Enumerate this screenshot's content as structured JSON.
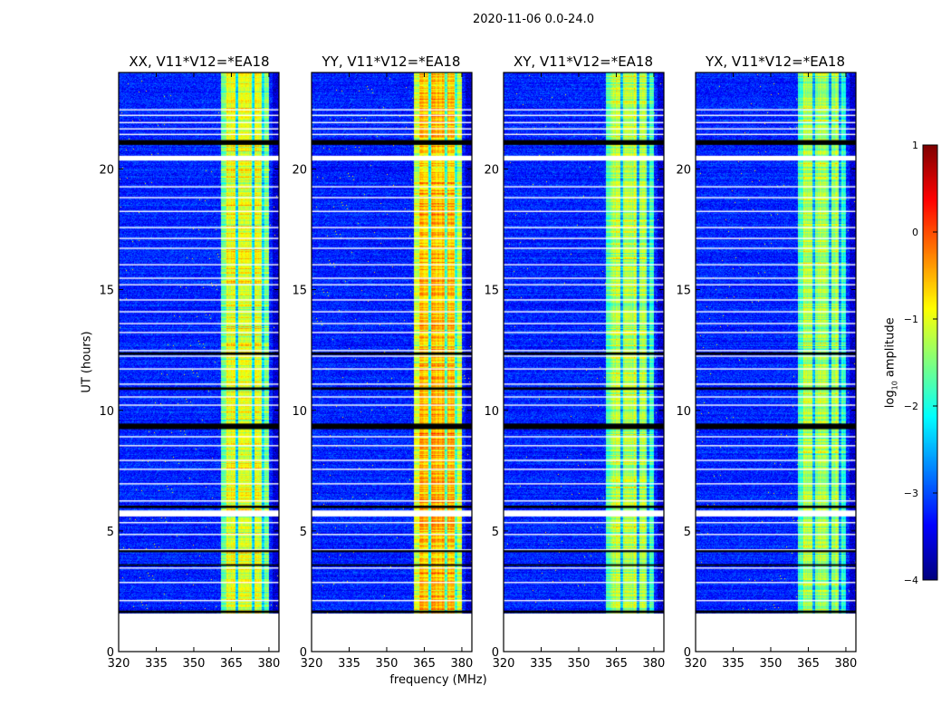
{
  "chart_data": {
    "type": "heatmap",
    "title": "2020-11-06 0.0-24.0",
    "xlabel": "frequency (MHz)",
    "ylabel": "UT (hours)",
    "xlim": [
      320,
      384
    ],
    "ylim": [
      0,
      24
    ],
    "xticks": [
      "320",
      "335",
      "350",
      "365",
      "380"
    ],
    "xtick_values": [
      320,
      335,
      350,
      365,
      380
    ],
    "yticks": [
      "0",
      "5",
      "10",
      "15",
      "20"
    ],
    "ytick_values": [
      0,
      5,
      10,
      15,
      20
    ],
    "data_start_hours": 1.6,
    "band_mhz": [
      360.5,
      380
    ],
    "band_notches_mhz": [
      367,
      373.5,
      377.5
    ],
    "background_log_amp": -3.2,
    "panels": [
      {
        "title": "XX, V11*V12=*EA18",
        "band_log_amp": -1.0
      },
      {
        "title": "YY, V11*V12=*EA18",
        "band_log_amp": -0.55
      },
      {
        "title": "XY, V11*V12=*EA18",
        "band_log_amp": -1.25
      },
      {
        "title": "YX, V11*V12=*EA18",
        "band_log_amp": -1.3
      }
    ],
    "flagged_white_hours": [
      22.48,
      22.25,
      21.95,
      21.69,
      21.46,
      19.29,
      18.84,
      18.27,
      17.6,
      17.15,
      16.74,
      16.06,
      15.5,
      15.23,
      14.6,
      14.11,
      13.62,
      13.25,
      12.5,
      12.27,
      11.74,
      11.11,
      10.58,
      10.24,
      8.93,
      8.56,
      7.95,
      7.58,
      6.98,
      6.27,
      5.37,
      4.88,
      4.24,
      3.49,
      2.89,
      2.14
    ],
    "flagged_white_bands": [
      [
        20.35,
        20.55
      ],
      [
        5.6,
        5.85
      ]
    ],
    "black_bands": [
      [
        21.0,
        21.2
      ],
      [
        9.22,
        9.45
      ],
      [
        10.85,
        10.95
      ],
      [
        12.3,
        12.4
      ],
      [
        5.95,
        6.05
      ],
      [
        4.12,
        4.2
      ],
      [
        3.55,
        3.62
      ],
      [
        1.6,
        1.7
      ]
    ],
    "colorbar": {
      "label": "log10 amplitude",
      "label_main": "log",
      "label_sub": "10",
      "label_rest": " amplitude",
      "range": [
        -4,
        1
      ],
      "ticks": [
        "−4",
        "−3",
        "−2",
        "−1",
        "0",
        "1"
      ],
      "tick_values": [
        -4,
        -3,
        -2,
        -1,
        0,
        1
      ],
      "colormap": "jet"
    }
  }
}
